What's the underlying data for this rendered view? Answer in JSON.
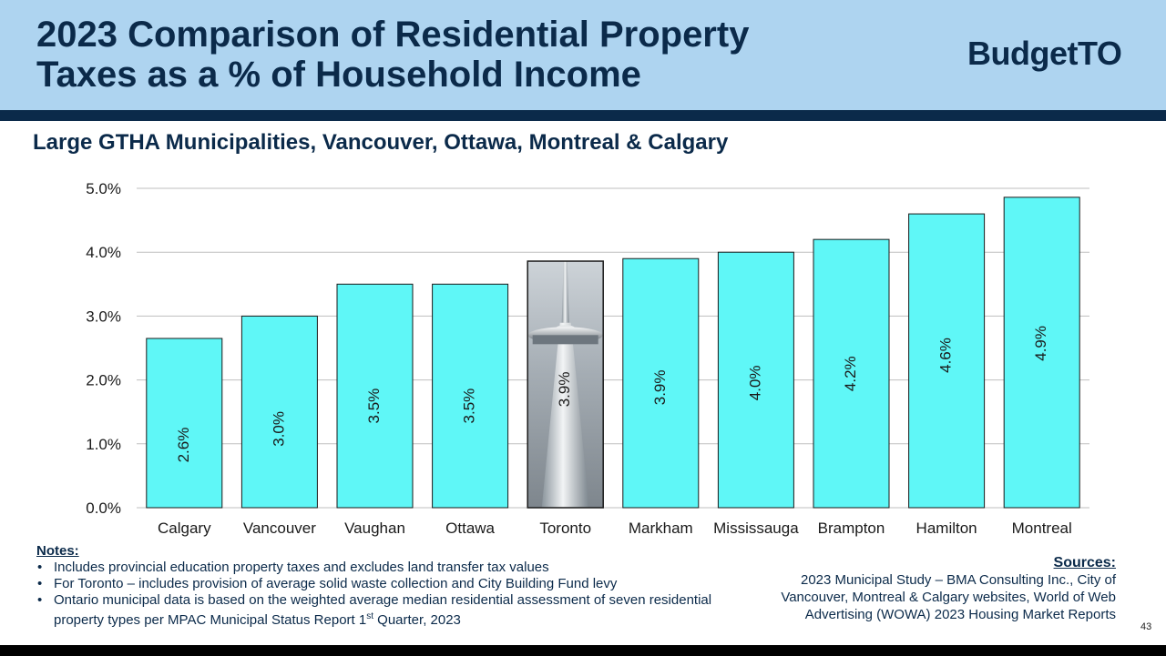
{
  "slide": {
    "title_line1": "2023 Comparison of Residential Property",
    "title_line2": "Taxes as a % of Household Income",
    "logo_part1": "Budget",
    "logo_part2": "TO",
    "subtitle": "Large GTHA Municipalities, Vancouver, Ottawa, Montreal & Calgary",
    "page_number": "43"
  },
  "colors": {
    "bar_fill": "#5ff7f7",
    "bar_stroke": "#1a1a1a",
    "grid": "#bfbfbf",
    "header_bg": "#aed4f0",
    "navy": "#0b2a4a"
  },
  "chart_data": {
    "type": "bar",
    "title": "",
    "xlabel": "",
    "ylabel": "",
    "categories": [
      "Calgary",
      "Vancouver",
      "Vaughan",
      "Ottawa",
      "Toronto",
      "Markham",
      "Mississauga",
      "Brampton",
      "Hamilton",
      "Montreal"
    ],
    "values": [
      2.65,
      3.0,
      3.5,
      3.5,
      3.86,
      3.9,
      4.0,
      4.2,
      4.6,
      4.86
    ],
    "data_labels": [
      "2.6%",
      "3.0%",
      "3.5%",
      "3.5%",
      "3.9%",
      "3.9%",
      "4.0%",
      "4.2%",
      "4.6%",
      "4.9%"
    ],
    "highlight_category": "Toronto",
    "ylim": [
      0,
      5
    ],
    "yticks": [
      0,
      1,
      2,
      3,
      4,
      5
    ],
    "ytick_labels": [
      "0.0%",
      "1.0%",
      "2.0%",
      "3.0%",
      "4.0%",
      "5.0%"
    ],
    "grid": true,
    "legend": "none"
  },
  "notes": {
    "heading": "Notes:",
    "item1": "Includes provincial education property taxes and excludes land transfer tax values",
    "item2": "For Toronto – includes provision of average solid waste collection and City Building Fund levy",
    "item3_pre": "Ontario municipal data is based on the weighted average median residential assessment of seven residential property types per MPAC Municipal Status Report 1",
    "item3_sup": "st",
    "item3_post": " Quarter, 2023"
  },
  "sources": {
    "heading": "Sources:",
    "line1": "2023 Municipal Study – BMA Consulting Inc.,  City of",
    "line2": "Vancouver, Montreal & Calgary websites, World of Web",
    "line3": "Advertising (WOWA) 2023 Housing Market Reports"
  }
}
